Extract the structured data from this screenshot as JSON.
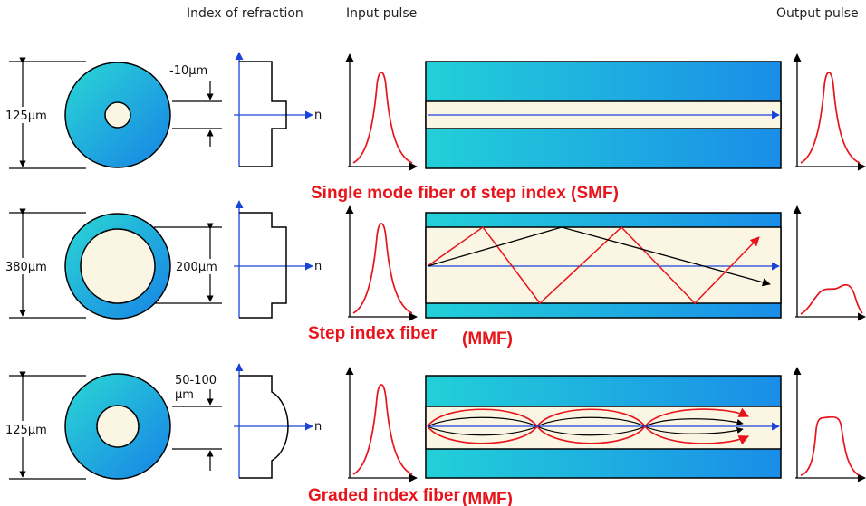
{
  "headers": {
    "index_of_refraction": "Index of refraction",
    "input_pulse": "Input pulse",
    "output_pulse": "Output pulse"
  },
  "axis_label": "n",
  "rows": [
    {
      "outer_diameter": "125μm",
      "core_dimension": "-10μm",
      "caption_main": "Single mode fiber of step index (SMF)",
      "caption_suffix": ""
    },
    {
      "outer_diameter": "380μm",
      "core_dimension": "200μm",
      "caption_main": "Step index fiber",
      "caption_suffix": "(MMF)"
    },
    {
      "outer_diameter": "125μm",
      "core_dimension_line1": "50-100",
      "core_dimension_line2": "μm",
      "caption_main": "Graded index fiber",
      "caption_suffix": "(MMF)"
    }
  ],
  "colors": {
    "cladding_light": "#22d4d8",
    "cladding_dark": "#1a8de8",
    "core": "#fbf6e4",
    "pulse": "#e8141b",
    "axis": "#1a43d9",
    "caption": "#e8141b"
  }
}
